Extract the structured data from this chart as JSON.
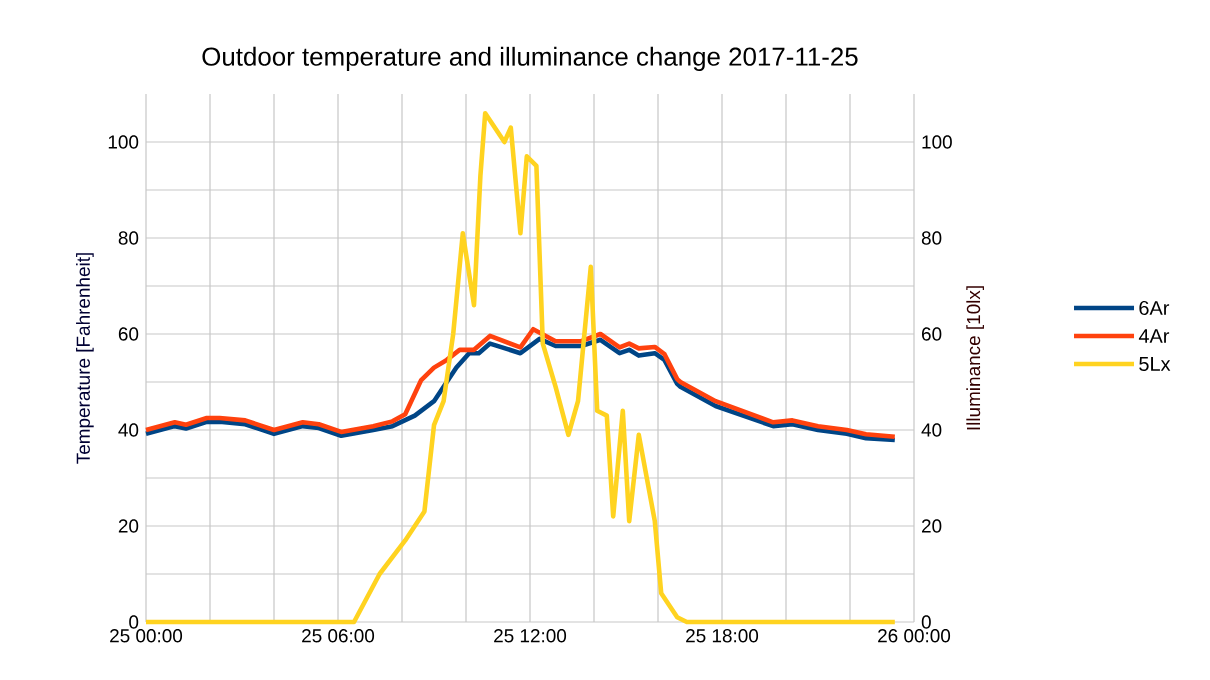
{
  "chart_data": {
    "type": "line",
    "title": "Outdoor temperature and illuminance change 2017-11-25",
    "ylabel": "Temperature [Fahrenheit]",
    "y2label": "Illuminance [10lx]",
    "xlim": [
      "2017-11-25T00:00",
      "2017-11-26T00:00"
    ],
    "xticks": [
      {
        "value": "2017-11-25T00:00",
        "label": "25 00:00"
      },
      {
        "value": "2017-11-25T02:00",
        "label": null
      },
      {
        "value": "2017-11-25T04:00",
        "label": null
      },
      {
        "value": "2017-11-25T06:00",
        "label": "25 06:00"
      },
      {
        "value": "2017-11-25T08:00",
        "label": null
      },
      {
        "value": "2017-11-25T10:00",
        "label": null
      },
      {
        "value": "2017-11-25T12:00",
        "label": "25 12:00"
      },
      {
        "value": "2017-11-25T14:00",
        "label": null
      },
      {
        "value": "2017-11-25T16:00",
        "label": null
      },
      {
        "value": "2017-11-25T18:00",
        "label": "25 18:00"
      },
      {
        "value": "2017-11-25T20:00",
        "label": null
      },
      {
        "value": "2017-11-25T22:00",
        "label": null
      },
      {
        "value": "2017-11-26T00:00",
        "label": "26 00:00"
      }
    ],
    "ylim": [
      0,
      110
    ],
    "yticks": [
      0,
      {
        "value": 10,
        "label": null
      },
      20,
      {
        "value": 30,
        "label": null
      },
      40,
      {
        "value": 50,
        "label": null
      },
      60,
      {
        "value": 70,
        "label": null
      },
      80,
      {
        "value": 90,
        "label": null
      },
      100
    ],
    "y2lim": [
      0,
      110
    ],
    "y2ticks": [
      0,
      20,
      40,
      60,
      80,
      100
    ],
    "grid": true,
    "legend": "right",
    "marker": "none",
    "line_style": "solid",
    "series": [
      {
        "name": "6Ar",
        "color": "#004586",
        "x": [
          "2017-11-25T00:00",
          "2017-11-25T00:54",
          "2017-11-25T01:15",
          "2017-11-25T01:54",
          "2017-11-25T02:18",
          "2017-11-25T03:06",
          "2017-11-25T04:00",
          "2017-11-25T04:54",
          "2017-11-25T05:24",
          "2017-11-25T06:06",
          "2017-11-25T07:06",
          "2017-11-25T07:42",
          "2017-11-25T08:24",
          "2017-11-25T09:00",
          "2017-11-25T09:18",
          "2017-11-25T09:42",
          "2017-11-25T10:06",
          "2017-11-25T10:24",
          "2017-11-25T10:45",
          "2017-11-25T11:42",
          "2017-11-25T12:18",
          "2017-11-25T12:48",
          "2017-11-25T13:36",
          "2017-11-25T14:12",
          "2017-11-25T14:48",
          "2017-11-25T15:06",
          "2017-11-25T15:24",
          "2017-11-25T15:54",
          "2017-11-25T16:12",
          "2017-11-25T16:36",
          "2017-11-25T16:42",
          "2017-11-25T17:48",
          "2017-11-25T19:36",
          "2017-11-25T20:12",
          "2017-11-25T21:00",
          "2017-11-25T21:54",
          "2017-11-25T22:30",
          "2017-11-25T23:24"
        ],
        "values": [
          39.2,
          40.8,
          40.3,
          41.7,
          41.7,
          41.2,
          39.2,
          40.8,
          40.4,
          38.8,
          40,
          40.8,
          43,
          46,
          49,
          53,
          56,
          56,
          58,
          56,
          59,
          57.5,
          57.5,
          58.8,
          56,
          56.7,
          55.5,
          56,
          54.6,
          49.6,
          49,
          45,
          40.8,
          41.2,
          40,
          39.2,
          38.3,
          37.9
        ]
      },
      {
        "name": "4Ar",
        "color": "#ff420e",
        "x": [
          "2017-11-25T00:00",
          "2017-11-25T00:54",
          "2017-11-25T01:15",
          "2017-11-25T01:54",
          "2017-11-25T02:18",
          "2017-11-25T03:06",
          "2017-11-25T04:00",
          "2017-11-25T04:54",
          "2017-11-25T05:24",
          "2017-11-25T06:06",
          "2017-11-25T07:06",
          "2017-11-25T07:42",
          "2017-11-25T08:06",
          "2017-11-25T08:36",
          "2017-11-25T09:00",
          "2017-11-25T09:24",
          "2017-11-25T09:48",
          "2017-11-25T10:15",
          "2017-11-25T10:45",
          "2017-11-25T11:42",
          "2017-11-25T12:06",
          "2017-11-25T12:48",
          "2017-11-25T13:36",
          "2017-11-25T14:12",
          "2017-11-25T14:48",
          "2017-11-25T15:06",
          "2017-11-25T15:24",
          "2017-11-25T15:54",
          "2017-11-25T16:12",
          "2017-11-25T16:36",
          "2017-11-25T16:42",
          "2017-11-25T17:48",
          "2017-11-25T19:36",
          "2017-11-25T20:12",
          "2017-11-25T21:00",
          "2017-11-25T21:54",
          "2017-11-25T22:30",
          "2017-11-25T23:24"
        ],
        "values": [
          40,
          41.6,
          41.1,
          42.5,
          42.5,
          42,
          40,
          41.6,
          41.2,
          39.6,
          40.8,
          41.8,
          43.3,
          50.4,
          53,
          54.6,
          56.7,
          56.7,
          59.6,
          57.2,
          61,
          58.5,
          58.5,
          60,
          57.2,
          58,
          57,
          57.3,
          55.8,
          50.6,
          50,
          46,
          41.6,
          42,
          40.8,
          40,
          39.1,
          38.6
        ]
      },
      {
        "name": "5Lx",
        "color": "#ffd320",
        "axis": "y2",
        "x": [
          "2017-11-25T00:00",
          "2017-11-25T06:30",
          "2017-11-25T07:18",
          "2017-11-25T08:06",
          "2017-11-25T08:42",
          "2017-11-25T09:00",
          "2017-11-25T09:18",
          "2017-11-25T09:36",
          "2017-11-25T09:54",
          "2017-11-25T10:15",
          "2017-11-25T10:27",
          "2017-11-25T10:36",
          "2017-11-25T11:12",
          "2017-11-25T11:24",
          "2017-11-25T11:42",
          "2017-11-25T11:54",
          "2017-11-25T12:12",
          "2017-11-25T12:24",
          "2017-11-25T12:48",
          "2017-11-25T13:12",
          "2017-11-25T13:30",
          "2017-11-25T13:54",
          "2017-11-25T14:06",
          "2017-11-25T14:24",
          "2017-11-25T14:36",
          "2017-11-25T14:54",
          "2017-11-25T15:06",
          "2017-11-25T15:24",
          "2017-11-25T15:54",
          "2017-11-25T16:06",
          "2017-11-25T16:36",
          "2017-11-25T16:54",
          "2017-11-25T23:24"
        ],
        "values": [
          0,
          0,
          10,
          17,
          23,
          41,
          46,
          60,
          81,
          66,
          93,
          106,
          100,
          103,
          81,
          97,
          95,
          58,
          49,
          39,
          46,
          74,
          44,
          43,
          22,
          44,
          21,
          39,
          21,
          6,
          1,
          0,
          0
        ]
      }
    ]
  }
}
